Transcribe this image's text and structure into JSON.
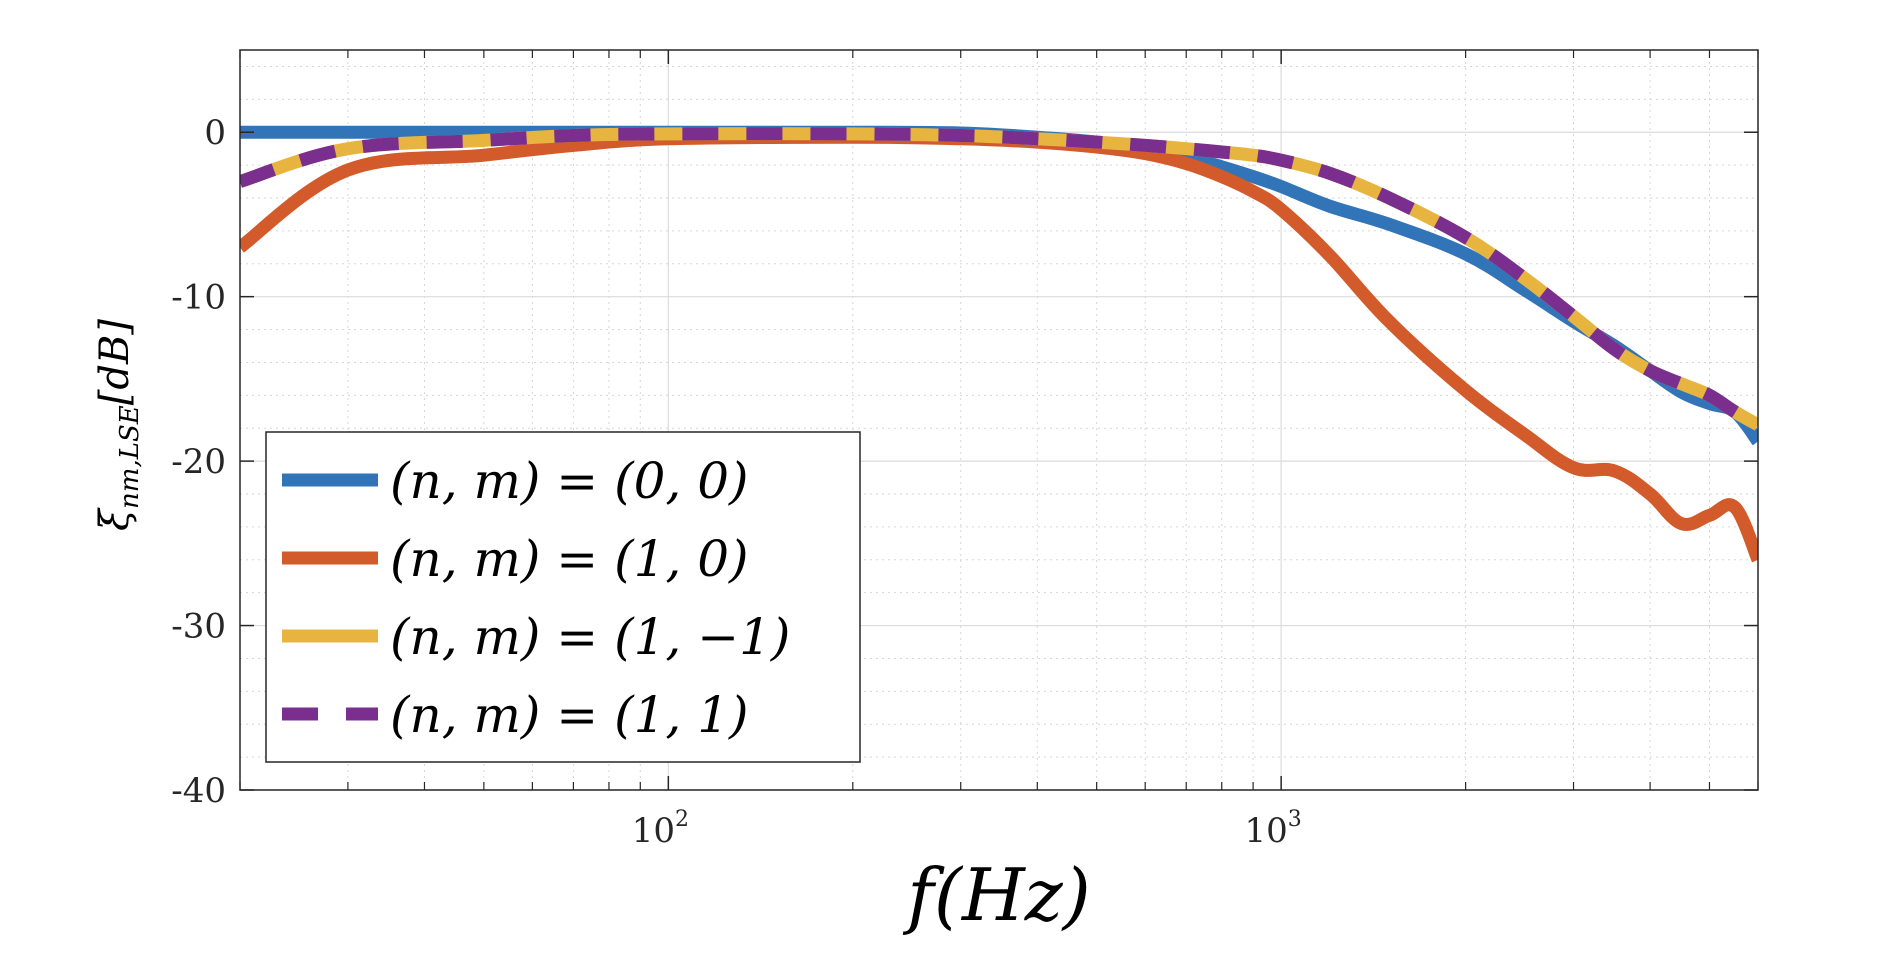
{
  "chart_data": {
    "type": "line",
    "title": "",
    "xlabel": "f(Hz)",
    "ylabel": "ξ_{nm,LSE}[dB]",
    "ylabel_main": "ξ",
    "ylabel_sub": "nm,LSE",
    "ylabel_unit": "[dB]",
    "xscale": "log",
    "xlim": [
      20,
      6000
    ],
    "ylim": [
      -40,
      5
    ],
    "grid": true,
    "minor_grid": true,
    "legend_position": "bottom-left",
    "x_ticks": [
      {
        "value": 100,
        "base": "10",
        "exp": "2"
      },
      {
        "value": 1000,
        "base": "10",
        "exp": "3"
      }
    ],
    "y_ticks": [
      {
        "value": 0,
        "label": "0"
      },
      {
        "value": -10,
        "label": "-10"
      },
      {
        "value": -20,
        "label": "-20"
      },
      {
        "value": -30,
        "label": "-30"
      },
      {
        "value": -40,
        "label": "-40"
      }
    ],
    "series": [
      {
        "name": "(n,m) = (0,0)",
        "legend_label": "(n, m) = (0, 0)",
        "color": "#3274b8",
        "style": "solid",
        "x": [
          20,
          50,
          100,
          200,
          300,
          400,
          500,
          600,
          700,
          800,
          900,
          1000,
          1200,
          1500,
          2000,
          2500,
          3000,
          3500,
          4000,
          4500,
          5000,
          5500,
          6000
        ],
        "y": [
          0,
          0,
          0,
          0,
          -0.05,
          -0.3,
          -0.6,
          -1.0,
          -1.5,
          -2.1,
          -2.7,
          -3.3,
          -4.5,
          -5.6,
          -7.4,
          -9.6,
          -11.5,
          -13.0,
          -14.5,
          -15.8,
          -16.5,
          -17.0,
          -18.8
        ]
      },
      {
        "name": "(n,m) = (1,0)",
        "legend_label": "(n, m) = (1, 0)",
        "color": "#d35a2a",
        "style": "solid",
        "x": [
          20,
          30,
          50,
          70,
          100,
          200,
          300,
          400,
          500,
          600,
          700,
          800,
          900,
          1000,
          1200,
          1500,
          2000,
          2500,
          3000,
          3500,
          4000,
          4500,
          5000,
          5500,
          6000
        ],
        "y": [
          -7,
          -2.3,
          -1.4,
          -0.8,
          -0.4,
          -0.3,
          -0.4,
          -0.6,
          -0.9,
          -1.3,
          -1.9,
          -2.7,
          -3.6,
          -4.7,
          -7.5,
          -11.5,
          -15.7,
          -18.4,
          -20.4,
          -20.6,
          -22.0,
          -23.8,
          -23.3,
          -22.8,
          -26.0
        ]
      },
      {
        "name": "(n,m) = (1,-1)",
        "legend_label": "(n, m) = (1, −1)",
        "color": "#e8b440",
        "style": "solid",
        "x": [
          20,
          30,
          50,
          70,
          100,
          200,
          300,
          400,
          500,
          600,
          700,
          800,
          900,
          1000,
          1200,
          1500,
          2000,
          2500,
          3000,
          3500,
          4000,
          4500,
          5000,
          5500,
          6000
        ],
        "y": [
          -3.0,
          -1.0,
          -0.5,
          -0.2,
          -0.1,
          -0.1,
          -0.2,
          -0.4,
          -0.6,
          -0.8,
          -1.0,
          -1.2,
          -1.4,
          -1.7,
          -2.5,
          -4.0,
          -6.4,
          -8.9,
          -11.2,
          -13.2,
          -14.5,
          -15.3,
          -16.0,
          -17.0,
          -17.8
        ]
      },
      {
        "name": "(n,m) = (1,1)",
        "legend_label": "(n, m) = (1, 1)",
        "color": "#7a2f8f",
        "style": "dashed",
        "x": [
          20,
          30,
          50,
          70,
          100,
          200,
          300,
          400,
          500,
          600,
          700,
          800,
          900,
          1000,
          1200,
          1500,
          2000,
          2500,
          3000,
          3500,
          4000,
          4500,
          5000,
          5500,
          6000
        ],
        "y": [
          -3.0,
          -1.0,
          -0.5,
          -0.2,
          -0.1,
          -0.1,
          -0.2,
          -0.4,
          -0.6,
          -0.8,
          -1.0,
          -1.2,
          -1.4,
          -1.7,
          -2.5,
          -4.0,
          -6.4,
          -8.9,
          -11.2,
          -13.2,
          -14.5,
          -15.3,
          -16.0,
          -17.0,
          -17.8
        ]
      }
    ]
  }
}
